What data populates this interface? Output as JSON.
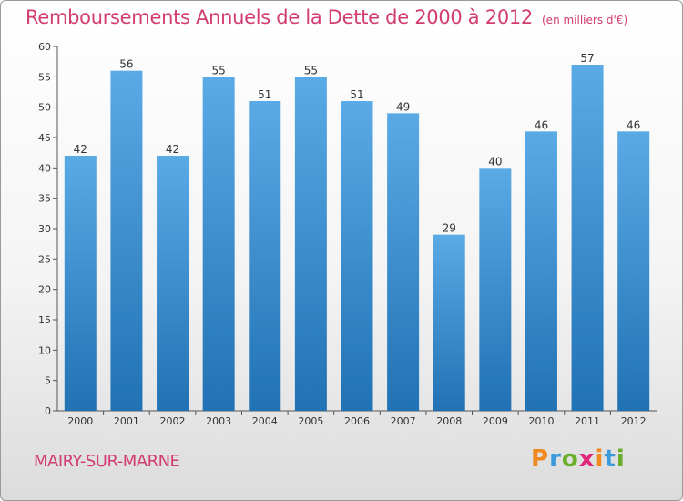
{
  "header": {
    "title": "Remboursements Annuels de la Dette de 2000 à 2012",
    "unit": "(en milliers d'€)"
  },
  "footer": {
    "place": "MAIRY-SUR-MARNE",
    "logo": [
      "P",
      "r",
      "o",
      "x",
      "i",
      "t",
      "i"
    ]
  },
  "colors": {
    "title": "#d23c72",
    "bar_top": "#5aaae6",
    "bar_bottom": "#2172b4",
    "logo_letters": [
      "#f08a1e",
      "#3b9ad9",
      "#6aae2c",
      "#e0267a",
      "#f08a1e",
      "#3b9ad9",
      "#6aae2c"
    ]
  },
  "chart_data": {
    "type": "bar",
    "categories": [
      "2000",
      "2001",
      "2002",
      "2003",
      "2004",
      "2005",
      "2006",
      "2007",
      "2008",
      "2009",
      "2010",
      "2011",
      "2012"
    ],
    "values": [
      42,
      56,
      42,
      55,
      51,
      55,
      51,
      49,
      29,
      40,
      46,
      57,
      46
    ],
    "ylim": [
      0,
      60
    ],
    "yticks": [
      0,
      5,
      10,
      15,
      20,
      25,
      30,
      35,
      40,
      45,
      50,
      55,
      60
    ],
    "grid": false,
    "data_labels": true
  }
}
